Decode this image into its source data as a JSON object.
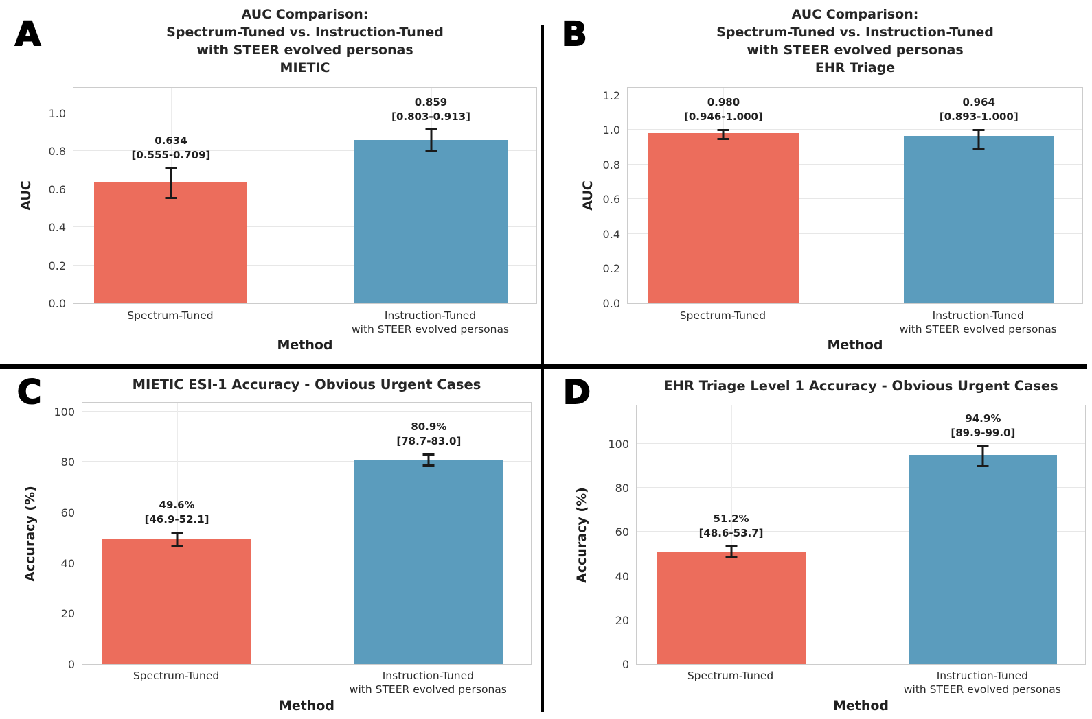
{
  "style": {
    "bar_red": "#EC6D5C",
    "bar_blue": "#5B9CBD",
    "divider_color": "#000000",
    "grid_color": "#E7E7E7",
    "plot_border_color": "#CCCCCC",
    "error_bar_color": "#1A1A1A",
    "title_color": "#262626",
    "tick_color": "#3A3A3A",
    "background": "#FFFFFF"
  },
  "chart_data": [
    {
      "panel": "A",
      "type": "bar",
      "title_lines": [
        "AUC Comparison:",
        "Spectrum-Tuned vs. Instruction-Tuned",
        "with STEER evolved personas",
        "MIETIC"
      ],
      "xlabel": "Method",
      "ylabel": "AUC",
      "categories": [
        [
          "Spectrum-Tuned"
        ],
        [
          "Instruction-Tuned",
          "with STEER evolved personas"
        ]
      ],
      "values": [
        0.634,
        0.859
      ],
      "ci": [
        [
          0.555,
          0.709
        ],
        [
          0.803,
          0.913
        ]
      ],
      "bar_labels": [
        [
          "0.634",
          "[0.555-0.709]"
        ],
        [
          "0.859",
          "[0.803-0.913]"
        ]
      ],
      "bar_colors": [
        "#EC6D5C",
        "#5B9CBD"
      ],
      "ylim": [
        0,
        1.14
      ],
      "ytick_values": [
        0.0,
        0.2,
        0.4,
        0.6,
        0.8,
        1.0
      ],
      "ytick_labels": [
        "0.0",
        "0.2",
        "0.4",
        "0.6",
        "0.8",
        "1.0"
      ],
      "grid": true,
      "legend": "none"
    },
    {
      "panel": "B",
      "type": "bar",
      "title_lines": [
        "AUC Comparison:",
        "Spectrum-Tuned vs. Instruction-Tuned",
        "with STEER evolved personas",
        "EHR Triage"
      ],
      "xlabel": "Method",
      "ylabel": "AUC",
      "categories": [
        [
          "Spectrum-Tuned"
        ],
        [
          "Instruction-Tuned",
          "with STEER evolved personas"
        ]
      ],
      "values": [
        0.98,
        0.964
      ],
      "ci": [
        [
          0.946,
          1.0
        ],
        [
          0.893,
          1.0
        ]
      ],
      "bar_labels": [
        [
          "0.980",
          "[0.946-1.000]"
        ],
        [
          "0.964",
          "[0.893-1.000]"
        ]
      ],
      "bar_colors": [
        "#EC6D5C",
        "#5B9CBD"
      ],
      "ylim": [
        0,
        1.25
      ],
      "ytick_values": [
        0.0,
        0.2,
        0.4,
        0.6,
        0.8,
        1.0,
        1.2
      ],
      "ytick_labels": [
        "0.0",
        "0.2",
        "0.4",
        "0.6",
        "0.8",
        "1.0",
        "1.2"
      ],
      "grid": true,
      "legend": "none"
    },
    {
      "panel": "C",
      "type": "bar",
      "title_lines": [
        "MIETIC ESI-1 Accuracy - Obvious Urgent Cases"
      ],
      "xlabel": "Method",
      "ylabel": "Accuracy (%)",
      "categories": [
        [
          "Spectrum-Tuned"
        ],
        [
          "Instruction-Tuned",
          "with STEER evolved personas"
        ]
      ],
      "values": [
        49.6,
        80.9
      ],
      "ci": [
        [
          46.9,
          52.1
        ],
        [
          78.7,
          83.0
        ]
      ],
      "bar_labels": [
        [
          "49.6%",
          "[46.9-52.1]"
        ],
        [
          "80.9%",
          "[78.7-83.0]"
        ]
      ],
      "bar_colors": [
        "#EC6D5C",
        "#5B9CBD"
      ],
      "ylim": [
        0,
        104
      ],
      "ytick_values": [
        0,
        20,
        40,
        60,
        80,
        100
      ],
      "ytick_labels": [
        "0",
        "20",
        "40",
        "60",
        "80",
        "100"
      ],
      "grid": true,
      "legend": "none"
    },
    {
      "panel": "D",
      "type": "bar",
      "title_lines": [
        "EHR Triage Level 1 Accuracy - Obvious Urgent Cases"
      ],
      "xlabel": "Method",
      "ylabel": "Accuracy (%)",
      "categories": [
        [
          "Spectrum-Tuned"
        ],
        [
          "Instruction-Tuned",
          "with STEER evolved personas"
        ]
      ],
      "values": [
        51.2,
        94.9
      ],
      "ci": [
        [
          48.6,
          53.7
        ],
        [
          89.9,
          99.0
        ]
      ],
      "bar_labels": [
        [
          "51.2%",
          "[48.6-53.7]"
        ],
        [
          "94.9%",
          "[89.9-99.0]"
        ]
      ],
      "bar_colors": [
        "#EC6D5C",
        "#5B9CBD"
      ],
      "ylim": [
        0,
        118
      ],
      "ytick_values": [
        0,
        20,
        40,
        60,
        80,
        100
      ],
      "ytick_labels": [
        "0",
        "20",
        "40",
        "60",
        "80",
        "100"
      ],
      "grid": true,
      "legend": "none"
    }
  ]
}
